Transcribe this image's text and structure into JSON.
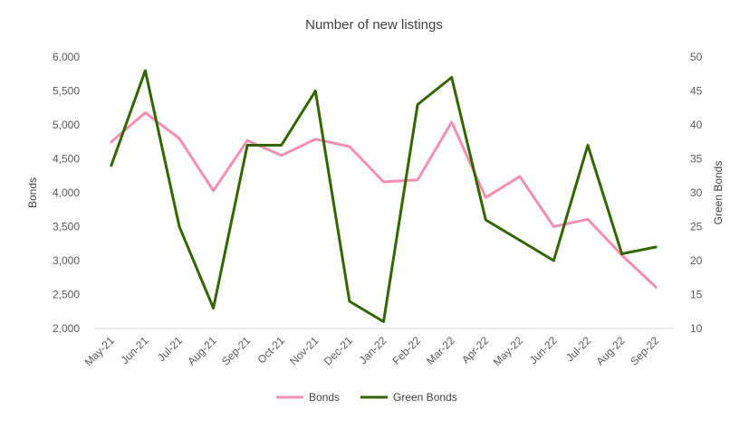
{
  "chart_data": {
    "type": "line",
    "title": "Number of new listings",
    "xlabel": "",
    "ylabel": "Bonds",
    "y2label": "Green Bonds",
    "categories": [
      "May-21",
      "Jun-21",
      "Jul-21",
      "Aug-21",
      "Sep-21",
      "Oct-21",
      "Nov-21",
      "Dec-21",
      "Jan-22",
      "Feb-22",
      "Mar-22",
      "Apr-22",
      "May-22",
      "Jun-22",
      "Jul-22",
      "Aug-22",
      "Sep-22"
    ],
    "ylim": [
      2000,
      6000
    ],
    "yticks": [
      2000,
      2500,
      3000,
      3500,
      4000,
      4500,
      5000,
      5500,
      6000
    ],
    "ytick_labels": [
      "2,000",
      "2,500",
      "3,000",
      "3,500",
      "4,000",
      "4,500",
      "5,000",
      "5,500",
      "6,000"
    ],
    "y2lim": [
      10,
      50
    ],
    "y2ticks": [
      10,
      15,
      20,
      25,
      30,
      35,
      40,
      45,
      50
    ],
    "y2tick_labels": [
      "10",
      "15",
      "20",
      "25",
      "30",
      "35",
      "40",
      "45",
      "50"
    ],
    "grid": false,
    "legend_position": "bottom",
    "series": [
      {
        "name": "Bonds",
        "axis": "left",
        "color": "#f48fb1",
        "values": [
          4750,
          5180,
          4800,
          4030,
          4770,
          4550,
          4790,
          4680,
          4160,
          4190,
          5040,
          3930,
          4240,
          3500,
          3610,
          3080,
          2610
        ]
      },
      {
        "name": "Green Bonds",
        "axis": "right",
        "color": "#336600",
        "values": [
          34,
          48,
          25,
          13,
          37,
          37,
          45,
          14,
          11,
          43,
          47,
          26,
          23,
          20,
          37,
          21,
          22
        ]
      }
    ]
  }
}
